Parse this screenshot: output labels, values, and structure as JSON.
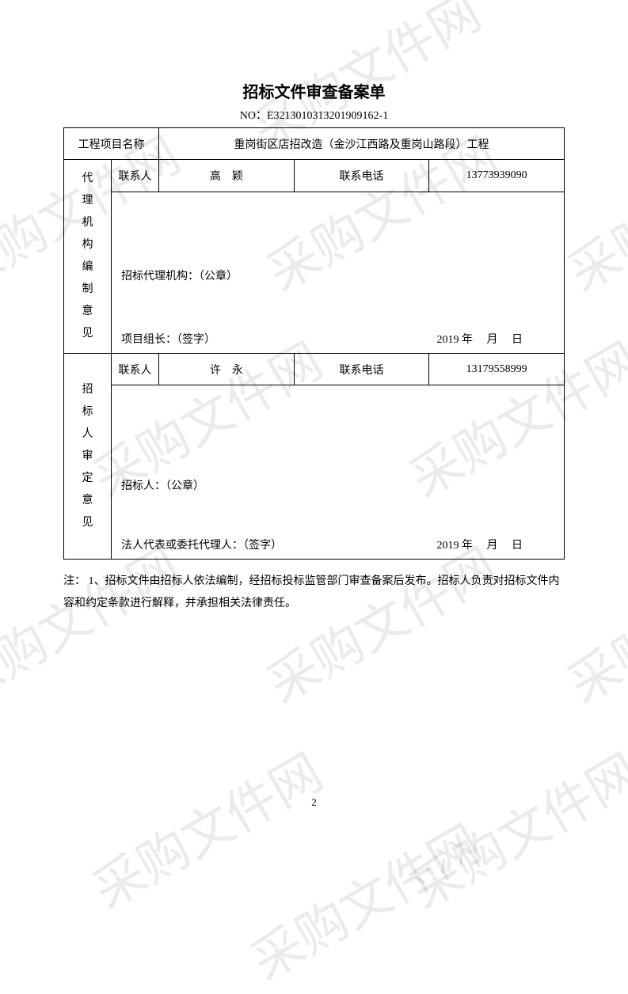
{
  "title": "招标文件审查备案单",
  "doc_no": "NO：E3213010313201909162-1",
  "project_name_label": "工程项目名称",
  "project_name": "重岗街区店招改造（金沙江西路及重岗山路段）工程",
  "contact_label": "联系人",
  "phone_label": "联系电话",
  "agency": {
    "vlabel": "代理机构编制意见",
    "contact": "高　颖",
    "phone": "13773939090",
    "stamp_label": "招标代理机构：（公章）",
    "sig_label": "项目组长：（签字）",
    "date": "2019 年　 月　 日"
  },
  "bidder": {
    "vlabel": "招标人审定意见",
    "contact": "许　永",
    "phone": "13179558999",
    "stamp_label": "招标人：（公章）",
    "sig_label": "法人代表或委托代理人：（签字）",
    "date": "2019 年　 月　 日"
  },
  "note": "注： 1、招标文件由招标人依法编制，经招标投标监管部门审查备案后发布。招标人负责对招标文件内容和约定条款进行解释，并承担相关法律责任。",
  "page_num": "2",
  "watermark_text": "采购文件网"
}
